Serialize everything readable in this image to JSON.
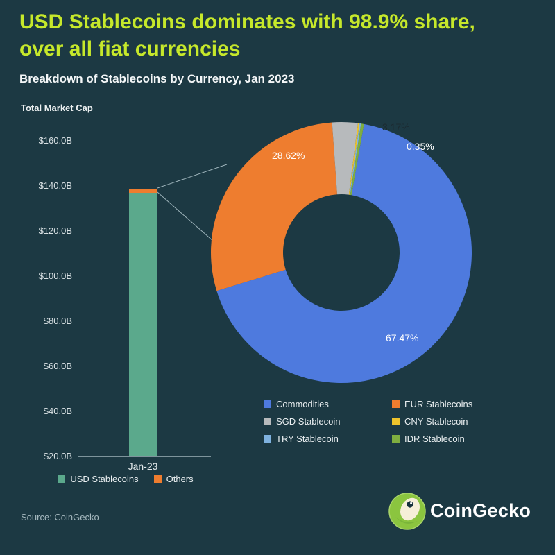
{
  "header": {
    "title": "USD Stablecoins dominates with 98.9% share, over all fiat currencies",
    "subtitle": "Breakdown of Stablecoins by Currency, Jan 2023"
  },
  "colors": {
    "background": "#1c3943",
    "title_green": "#c6e82b",
    "usd_green": "#5ba98c",
    "others_orange": "#ee7d2f",
    "donut_blue": "#4e7ade",
    "donut_gray": "#b7babc",
    "donut_yellow": "#edc32c",
    "donut_lightblue": "#7fb2df",
    "donut_green": "#7fae40"
  },
  "chart_data": [
    {
      "type": "bar",
      "title": "Total Market Cap",
      "categories": [
        "Jan-23"
      ],
      "stacked": true,
      "series": [
        {
          "name": "USD Stablecoins",
          "color": "#5ba98c",
          "values": [
            136.9
          ]
        },
        {
          "name": "Others",
          "color": "#ee7d2f",
          "values": [
            1.5
          ]
        }
      ],
      "ylabel": "Total Market Cap",
      "ylim": [
        20,
        160
      ],
      "ytick_labels": [
        "$160.0B",
        "$140.0B",
        "$120.0B",
        "$100.0B",
        "$80.0B",
        "$60.0B",
        "$40.0B",
        "$20.0B"
      ],
      "legend_position": "bottom"
    },
    {
      "type": "pie",
      "donut": true,
      "start_angle_deg": 10,
      "legend_position": "bottom-right",
      "segments": [
        {
          "label": "Commodities",
          "value": 67.47,
          "pct_label": "67.47%",
          "color": "#4e7ade"
        },
        {
          "label": "EUR Stablecoins",
          "value": 28.62,
          "pct_label": "28.62%",
          "color": "#ee7d2f"
        },
        {
          "label": "SGD Stablecoin",
          "value": 3.17,
          "pct_label": "3.17%",
          "color": "#b7babc"
        },
        {
          "label": "CNY Stablecoin",
          "value": 0.2,
          "pct_label": "",
          "color": "#edc32c"
        },
        {
          "label": "TRY Stablecoin",
          "value": 0.19,
          "pct_label": "",
          "color": "#7fb2df"
        },
        {
          "label": "IDR Stablecoin",
          "value": 0.35,
          "pct_label": "0.35%",
          "color": "#7fae40"
        }
      ]
    }
  ],
  "footer": {
    "source": "Source: CoinGecko",
    "brand": "CoinGecko"
  }
}
